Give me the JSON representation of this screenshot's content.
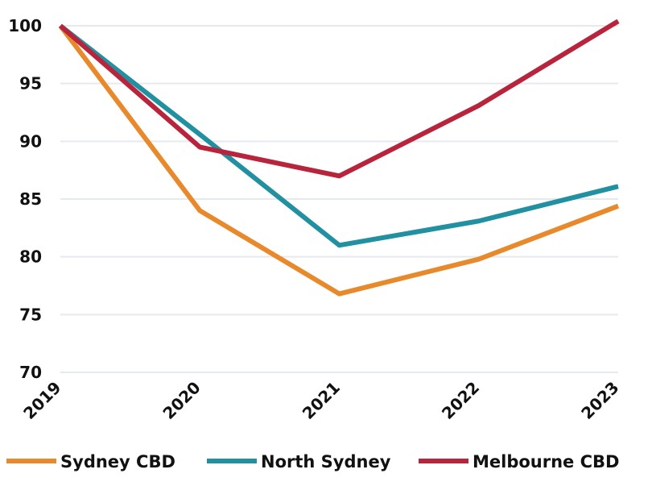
{
  "chart_data": {
    "type": "line",
    "title": "",
    "xlabel": "",
    "ylabel": "",
    "categories": [
      "2019",
      "2020",
      "2021",
      "2022",
      "2023"
    ],
    "ylim": [
      70,
      100
    ],
    "yticks": [
      "70",
      "75",
      "80",
      "85",
      "90",
      "95",
      "100"
    ],
    "grid": "horizontal",
    "legend_position": "bottom",
    "series": [
      {
        "name": "Sydney CBD",
        "color": "#e8892c",
        "values": [
          100,
          84.0,
          76.8,
          79.8,
          84.4
        ]
      },
      {
        "name": "North Sydney",
        "color": "#2190a0",
        "values": [
          100,
          90.6,
          81.0,
          83.1,
          86.1
        ]
      },
      {
        "name": "Melbourne CBD",
        "color": "#b8243c",
        "values": [
          100,
          89.5,
          87.0,
          93.1,
          100.4
        ]
      }
    ]
  }
}
